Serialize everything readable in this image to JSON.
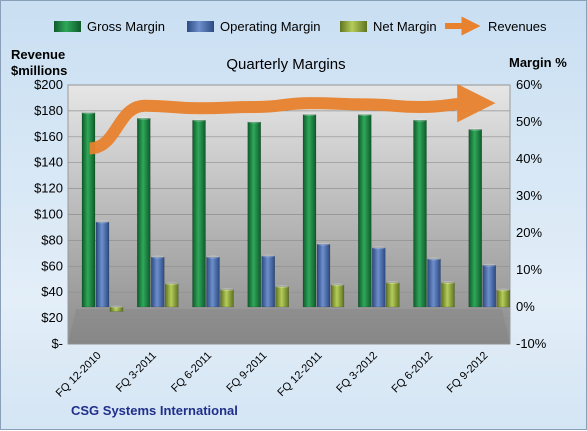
{
  "chart_data": {
    "type": "bar",
    "title": "Quarterly Margins",
    "subtitle_label": "CSG Systems International",
    "y_left_label_line1": "Revenue",
    "y_left_label_line2": "$millions",
    "y_right_label": "Margin %",
    "categories": [
      "FQ 12-2010",
      "FQ 3-2011",
      "FQ 6-2011",
      "FQ 9-2011",
      "FQ 12-2011",
      "FQ 3-2012",
      "FQ 6-2012",
      "FQ 9-2012"
    ],
    "y_left_ticks": [
      "$-",
      "$20",
      "$40",
      "$60",
      "$80",
      "$100",
      "$120",
      "$140",
      "$160",
      "$180",
      "$200"
    ],
    "y_right_ticks": [
      "-10%",
      "0%",
      "10%",
      "20%",
      "30%",
      "40%",
      "50%",
      "60%"
    ],
    "ylim_left": [
      0,
      200
    ],
    "ylim_right": [
      -10,
      60
    ],
    "series": [
      {
        "name": "Gross Margin",
        "axis": "right",
        "kind": "bar",
        "values": [
          52.5,
          51.0,
          50.5,
          50.0,
          52.0,
          52.0,
          50.5,
          48.0
        ]
      },
      {
        "name": "Operating Margin",
        "axis": "right",
        "kind": "bar",
        "values": [
          23.0,
          13.5,
          13.5,
          13.8,
          17.0,
          16.0,
          13.0,
          11.3
        ]
      },
      {
        "name": "Net Margin",
        "axis": "right",
        "kind": "bar",
        "values": [
          -1.2,
          6.3,
          4.7,
          5.5,
          6.0,
          6.6,
          6.6,
          4.6
        ]
      },
      {
        "name": "Revenues",
        "axis": "left",
        "kind": "line",
        "values": [
          151,
          184,
          182,
          183,
          186,
          185,
          183,
          186
        ]
      }
    ],
    "colors": {
      "gross": "#1a7a3c",
      "operating": "#4a6fae",
      "net": "#8fa73a",
      "revenues": "#e8822e"
    },
    "grid": true,
    "legend_position": "top"
  }
}
